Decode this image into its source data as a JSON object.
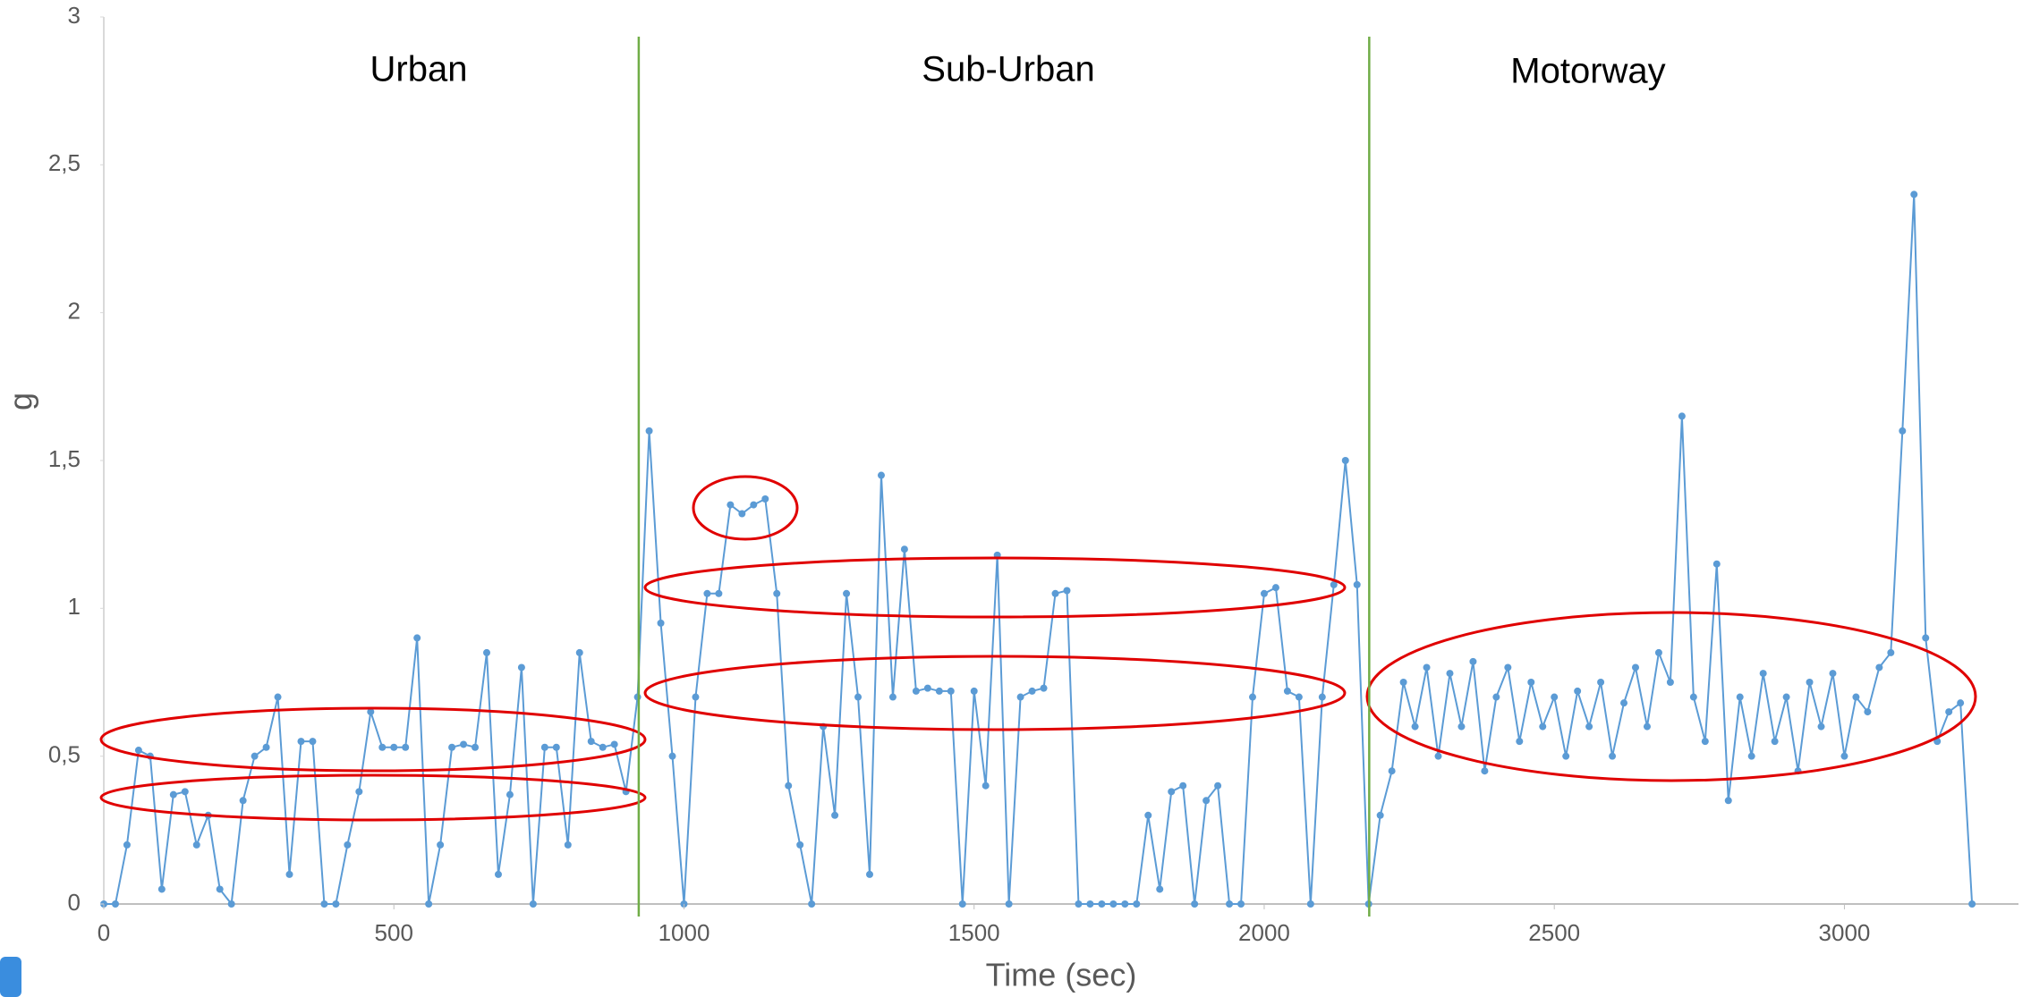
{
  "chart_data": {
    "type": "line",
    "xlabel": "Time (sec)",
    "ylabel": "g",
    "annotations": [
      "Urban",
      "Sub-Urban",
      "Motorway"
    ],
    "boundaries": [
      922,
      2181
    ],
    "boundary_color": "#70ad47",
    "xlim": [
      0,
      3300
    ],
    "xticks": [
      0,
      500,
      1000,
      1500,
      2000,
      2500,
      3000
    ],
    "ylim": [
      0,
      3
    ],
    "yticks": [
      0,
      {
        "value": 0.5,
        "label": "0,5"
      },
      1,
      {
        "value": 1.5,
        "label": "1,5"
      },
      2,
      {
        "value": 2.5,
        "label": "2,5"
      },
      3
    ],
    "x": [
      0,
      20,
      40,
      60,
      80,
      100,
      120,
      140,
      160,
      180,
      200,
      220,
      240,
      260,
      280,
      300,
      320,
      340,
      360,
      380,
      400,
      420,
      440,
      460,
      480,
      500,
      520,
      540,
      560,
      580,
      600,
      620,
      640,
      660,
      680,
      700,
      720,
      740,
      760,
      780,
      800,
      820,
      840,
      860,
      880,
      900,
      920,
      940,
      960,
      980,
      1000,
      1020,
      1040,
      1060,
      1080,
      1100,
      1120,
      1140,
      1160,
      1180,
      1200,
      1220,
      1240,
      1260,
      1280,
      1300,
      1320,
      1340,
      1360,
      1380,
      1400,
      1420,
      1440,
      1460,
      1480,
      1500,
      1520,
      1540,
      1560,
      1580,
      1600,
      1620,
      1640,
      1660,
      1680,
      1700,
      1720,
      1740,
      1760,
      1780,
      1800,
      1820,
      1840,
      1860,
      1880,
      1900,
      1920,
      1940,
      1960,
      1980,
      2000,
      2020,
      2040,
      2060,
      2080,
      2100,
      2120,
      2140,
      2160,
      2180,
      2200,
      2220,
      2240,
      2260,
      2280,
      2300,
      2320,
      2340,
      2360,
      2380,
      2400,
      2420,
      2440,
      2460,
      2480,
      2500,
      2520,
      2540,
      2560,
      2580,
      2600,
      2620,
      2640,
      2660,
      2680,
      2700,
      2720,
      2740,
      2760,
      2780,
      2800,
      2820,
      2840,
      2860,
      2880,
      2900,
      2920,
      2940,
      2960,
      2980,
      3000,
      3020,
      3040,
      3060,
      3080,
      3100,
      3120,
      3140,
      3160,
      3180,
      3200,
      3220
    ],
    "series": [
      {
        "color": "#5b9bd5",
        "values": [
          0,
          0,
          0.2,
          0.52,
          0.5,
          0.05,
          0.37,
          0.38,
          0.2,
          0.3,
          0.05,
          0,
          0.35,
          0.5,
          0.53,
          0.7,
          0.1,
          0.55,
          0.55,
          0,
          0,
          0.2,
          0.38,
          0.65,
          0.53,
          0.53,
          0.53,
          0.9,
          0,
          0.2,
          0.53,
          0.54,
          0.53,
          0.85,
          0.1,
          0.37,
          0.8,
          0,
          0.53,
          0.53,
          0.2,
          0.85,
          0.55,
          0.53,
          0.54,
          0.38,
          0.7,
          1.6,
          0.95,
          0.5,
          0,
          0.7,
          1.05,
          1.05,
          1.35,
          1.32,
          1.35,
          1.37,
          1.05,
          0.4,
          0.2,
          0,
          0.6,
          0.3,
          1.05,
          0.7,
          0.1,
          1.45,
          0.7,
          1.2,
          0.72,
          0.73,
          0.72,
          0.72,
          0,
          0.72,
          0.4,
          1.18,
          0,
          0.7,
          0.72,
          0.73,
          1.05,
          1.06,
          0,
          0,
          0,
          0,
          0,
          0,
          0.3,
          0.05,
          0.38,
          0.4,
          0,
          0.35,
          0.4,
          0,
          0,
          0.7,
          1.05,
          1.07,
          0.72,
          0.7,
          0,
          0.7,
          1.08,
          1.5,
          1.08,
          0,
          0.3,
          0.45,
          0.75,
          0.6,
          0.8,
          0.5,
          0.78,
          0.6,
          0.82,
          0.45,
          0.7,
          0.8,
          0.55,
          0.75,
          0.6,
          0.7,
          0.5,
          0.72,
          0.6,
          0.75,
          0.5,
          0.68,
          0.8,
          0.6,
          0.85,
          0.75,
          1.65,
          0.7,
          0.55,
          1.15,
          0.35,
          0.7,
          0.5,
          0.78,
          0.55,
          0.7,
          0.45,
          0.75,
          0.6,
          0.78,
          0.5,
          0.7,
          0.65,
          0.8,
          0.85,
          1.6,
          2.4,
          0.9,
          0.55,
          0.65,
          0.68,
          0
        ]
      }
    ],
    "grid": false
  }
}
